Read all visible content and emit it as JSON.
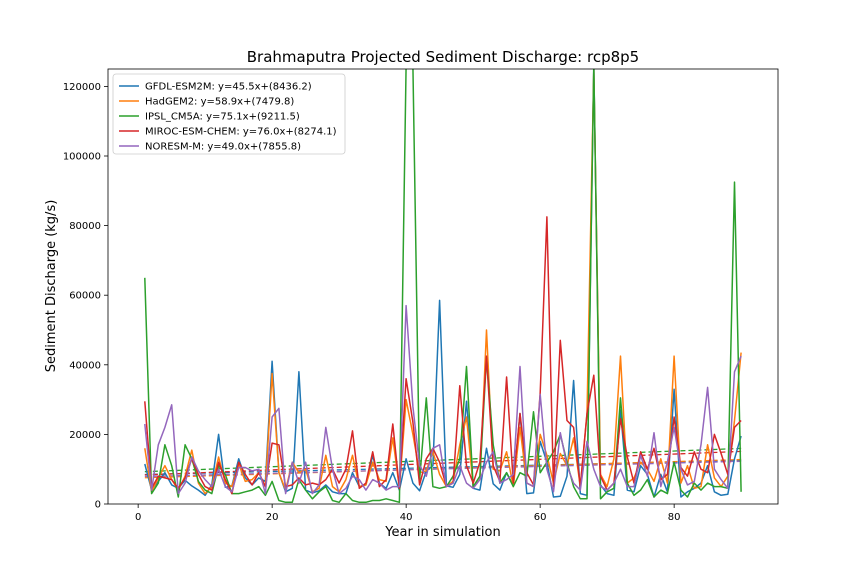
{
  "chart_data": {
    "type": "line",
    "title": "Brahmaputra Projected Sediment Discharge: rcp8p5",
    "xlabel": "Year in simulation",
    "ylabel": "Sediment Discharge (kg/s)",
    "xlim": [
      -4.5,
      95.5
    ],
    "ylim": [
      0,
      125000
    ],
    "xticks": [
      0,
      20,
      40,
      60,
      80
    ],
    "yticks": [
      0,
      20000,
      40000,
      60000,
      80000,
      100000,
      120000
    ],
    "grid": false,
    "legend_placement": "top-left",
    "x": [
      1,
      2,
      3,
      4,
      5,
      6,
      7,
      8,
      9,
      10,
      11,
      12,
      13,
      14,
      15,
      16,
      17,
      18,
      19,
      20,
      21,
      22,
      23,
      24,
      25,
      26,
      27,
      28,
      29,
      30,
      31,
      32,
      33,
      34,
      35,
      36,
      37,
      38,
      39,
      40,
      41,
      42,
      43,
      44,
      45,
      46,
      47,
      48,
      49,
      50,
      51,
      52,
      53,
      54,
      55,
      56,
      57,
      58,
      59,
      60,
      61,
      62,
      63,
      64,
      65,
      66,
      67,
      68,
      69,
      70,
      71,
      72,
      73,
      74,
      75,
      76,
      77,
      78,
      79,
      80,
      81,
      82,
      83,
      84,
      85,
      86,
      87,
      88,
      89,
      90
    ],
    "series": [
      {
        "name": "GFDL-ESM2M: y=45.5x+(8436.2)",
        "color": "#1f77b4",
        "trend": {
          "slope": 45.5,
          "intercept": 8436.2
        },
        "values": [
          11500,
          4000,
          6500,
          9000,
          5500,
          4500,
          6800,
          5200,
          4000,
          2500,
          5500,
          20000,
          4800,
          5200,
          13000,
          7500,
          5500,
          7500,
          6500,
          41000,
          9000,
          3500,
          4500,
          38000,
          4000,
          3200,
          3800,
          5500,
          3500,
          3000,
          3000,
          9000,
          5000,
          5500,
          14000,
          6000,
          4500,
          9000,
          4000,
          13000,
          6000,
          3800,
          9500,
          11000,
          58500,
          5200,
          4800,
          8500,
          29500,
          4500,
          4000,
          16000,
          5800,
          4000,
          9000,
          5200,
          26000,
          3000,
          3200,
          18000,
          12000,
          2000,
          2200,
          8000,
          35500,
          3000,
          2500,
          126000,
          5500,
          3000,
          2500,
          27000,
          4000,
          3500,
          11000,
          8500,
          2000,
          8500,
          3500,
          33000,
          2000,
          3500,
          4500,
          6000,
          11000,
          3500,
          2500,
          2800,
          13000,
          19500
        ]
      },
      {
        "name": "HadGEM2: y=58.9x+(7479.8)",
        "color": "#ff7f0e",
        "trend": {
          "slope": 58.9,
          "intercept": 7479.8
        },
        "values": [
          16000,
          3500,
          7500,
          11000,
          7000,
          4000,
          8000,
          15500,
          6000,
          3000,
          5000,
          13500,
          6000,
          5000,
          11500,
          6500,
          7000,
          9000,
          5000,
          37500,
          9000,
          4000,
          12000,
          9000,
          10000,
          3500,
          4500,
          14000,
          5000,
          3500,
          7000,
          14000,
          5000,
          5500,
          12000,
          7000,
          6500,
          19000,
          4500,
          30000,
          20000,
          9000,
          9500,
          15000,
          8500,
          5000,
          6500,
          17000,
          25000,
          5000,
          7000,
          50000,
          10000,
          9500,
          15000,
          5000,
          22000,
          6000,
          5000,
          20000,
          14000,
          6000,
          14500,
          11000,
          19000,
          5000,
          26000,
          125000,
          8500,
          5000,
          13000,
          42500,
          6000,
          7500,
          12000,
          10000,
          6500,
          13000,
          6000,
          42500,
          6000,
          11000,
          4500,
          5000,
          17000,
          7500,
          5000,
          8000,
          24000,
          43500
        ]
      },
      {
        "name": "IPSL_CM5A: y=75.1x+(9211.5)",
        "color": "#2ca02c",
        "trend": {
          "slope": 75.1,
          "intercept": 9211.5
        },
        "values": [
          65000,
          3000,
          6000,
          17000,
          11000,
          2000,
          17000,
          13000,
          6500,
          4000,
          3000,
          11000,
          8500,
          3000,
          3000,
          3500,
          4000,
          5000,
          2500,
          6500,
          1000,
          500,
          500,
          7000,
          4000,
          1500,
          3500,
          5000,
          1000,
          500,
          3000,
          1000,
          500,
          500,
          1000,
          1000,
          1500,
          1000,
          500,
          126000,
          126000,
          7000,
          30500,
          5000,
          4500,
          5000,
          8000,
          13000,
          39500,
          5000,
          8000,
          42000,
          17000,
          6000,
          9000,
          5000,
          9000,
          8000,
          26500,
          9000,
          12000,
          15000,
          20000,
          12000,
          5000,
          1500,
          1500,
          126000,
          1500,
          3500,
          4500,
          30500,
          6000,
          2500,
          4000,
          7000,
          2000,
          4000,
          3000,
          12000,
          4000,
          2000,
          6000,
          4000,
          6000,
          5000,
          5000,
          4500,
          92500,
          3500
        ]
      },
      {
        "name": "MIROC-ESM-CHEM: y=76.0x+(8274.1)",
        "color": "#d62728",
        "trend": {
          "slope": 76.0,
          "intercept": 8274.1
        },
        "values": [
          29500,
          4500,
          8000,
          7500,
          7000,
          4500,
          7500,
          13000,
          8500,
          5000,
          4000,
          12000,
          7000,
          3000,
          12000,
          8500,
          5500,
          9000,
          5000,
          17500,
          17000,
          5000,
          5500,
          7500,
          5500,
          6000,
          5500,
          7000,
          10000,
          6000,
          10000,
          21000,
          4500,
          6000,
          15000,
          5000,
          7000,
          23000,
          4500,
          36000,
          23500,
          5500,
          13000,
          16000,
          12000,
          5000,
          6000,
          34000,
          11000,
          6000,
          12000,
          42500,
          11000,
          6500,
          36500,
          6000,
          26000,
          9000,
          5500,
          32000,
          82500,
          5000,
          47000,
          24000,
          22000,
          5000,
          26000,
          37000,
          8000,
          4000,
          6000,
          24500,
          13500,
          6000,
          15000,
          10000,
          16000,
          7000,
          8500,
          25000,
          10500,
          8000,
          15000,
          10000,
          9000,
          20000,
          14500,
          8500,
          22000,
          24000
        ]
      },
      {
        "name": "NORESM-M: y=49.0x+(7855.8)",
        "color": "#9467bd",
        "trend": {
          "slope": 49.0,
          "intercept": 7855.8
        },
        "values": [
          23000,
          4000,
          17000,
          22000,
          28500,
          3000,
          6000,
          13500,
          9500,
          7000,
          5000,
          10000,
          5000,
          3500,
          10500,
          10500,
          9500,
          10000,
          3000,
          25000,
          27500,
          3000,
          12000,
          6000,
          12000,
          3000,
          5500,
          22000,
          10000,
          3000,
          4500,
          8000,
          7000,
          4000,
          7000,
          6000,
          4000,
          5000,
          5000,
          57000,
          28000,
          11000,
          8000,
          16000,
          17000,
          5000,
          6000,
          11000,
          6000,
          4500,
          7000,
          12000,
          15000,
          6000,
          7000,
          8500,
          39500,
          6000,
          5000,
          31500,
          10000,
          3500,
          20500,
          11000,
          6000,
          4000,
          18000,
          10000,
          5000,
          4000,
          6000,
          10000,
          5000,
          5000,
          14000,
          8000,
          20500,
          5000,
          12000,
          22000,
          10000,
          5500,
          6500,
          17000,
          33500,
          10000,
          7000,
          4500,
          38000,
          42500
        ]
      }
    ]
  }
}
